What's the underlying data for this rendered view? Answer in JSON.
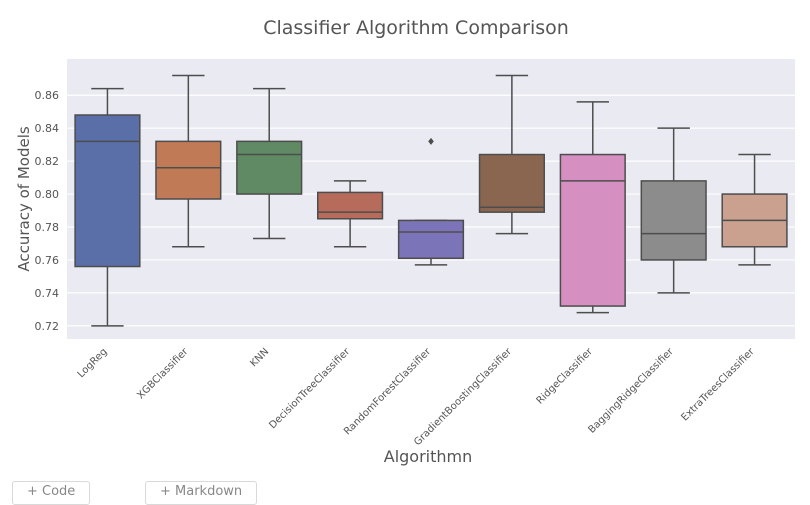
{
  "chart_data": {
    "type": "box",
    "title": "Classifier Algorithm Comparison",
    "xlabel": "Algorithmn",
    "ylabel": "Accuracy of Models",
    "ylim": [
      0.712,
      0.882
    ],
    "yticks": [
      "0.72",
      "0.74",
      "0.76",
      "0.78",
      "0.80",
      "0.82",
      "0.84",
      "0.86"
    ],
    "grid": true,
    "categories": [
      "LogReg",
      "XGBClassifier",
      "KNN",
      "DecisionTreeClassifier",
      "RandomForestClassifier",
      "GradientBoostingClassifier",
      "RidgeClassifier",
      "BaggingRidgeClassifier",
      "ExtraTreesClassifier"
    ],
    "boxes": [
      {
        "name": "LogReg",
        "whislo": 0.72,
        "q1": 0.756,
        "med": 0.832,
        "q3": 0.848,
        "whishi": 0.864,
        "fliers": [],
        "color": "#5a6fa8"
      },
      {
        "name": "XGBClassifier",
        "whislo": 0.768,
        "q1": 0.797,
        "med": 0.816,
        "q3": 0.832,
        "whishi": 0.872,
        "fliers": [],
        "color": "#c07a56"
      },
      {
        "name": "KNN",
        "whislo": 0.773,
        "q1": 0.8,
        "med": 0.824,
        "q3": 0.832,
        "whishi": 0.864,
        "fliers": [],
        "color": "#5f8a64"
      },
      {
        "name": "DecisionTreeClassifier",
        "whislo": 0.768,
        "q1": 0.785,
        "med": 0.789,
        "q3": 0.801,
        "whishi": 0.808,
        "fliers": [],
        "color": "#b76b5a"
      },
      {
        "name": "RandomForestClassifier",
        "whislo": 0.757,
        "q1": 0.761,
        "med": 0.777,
        "q3": 0.784,
        "whishi": 0.784,
        "fliers": [
          0.832
        ],
        "color": "#7b74b8"
      },
      {
        "name": "GradientBoostingClassifier",
        "whislo": 0.776,
        "q1": 0.789,
        "med": 0.792,
        "q3": 0.824,
        "whishi": 0.872,
        "fliers": [],
        "color": "#8a6650"
      },
      {
        "name": "RidgeClassifier",
        "whislo": 0.728,
        "q1": 0.732,
        "med": 0.808,
        "q3": 0.824,
        "whishi": 0.856,
        "fliers": [],
        "color": "#d58fc0"
      },
      {
        "name": "BaggingRidgeClassifier",
        "whislo": 0.74,
        "q1": 0.76,
        "med": 0.776,
        "q3": 0.808,
        "whishi": 0.84,
        "fliers": [],
        "color": "#8c8c8c"
      },
      {
        "name": "ExtraTreesClassifier",
        "whislo": 0.757,
        "q1": 0.768,
        "med": 0.784,
        "q3": 0.8,
        "whishi": 0.824,
        "fliers": [],
        "color": "#caa18f"
      }
    ],
    "colors": {
      "plot_bg": "#eaeaf2",
      "grid": "#ffffff",
      "line": "#4d4d4d",
      "text": "#555555"
    }
  },
  "toolbar": {
    "code_label": "+ Code",
    "markdown_label": "+ Markdown"
  }
}
